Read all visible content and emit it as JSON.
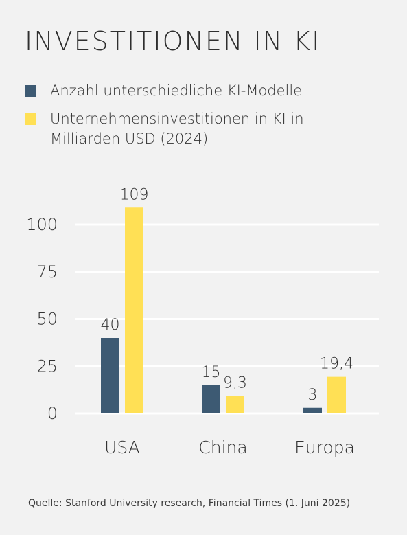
{
  "chart_data": {
    "type": "bar",
    "title": "INVESTITIONEN IN KI",
    "categories": [
      "USA",
      "China",
      "Europa"
    ],
    "series": [
      {
        "name": "Anzahl unterschiedliche KI-Modelle",
        "color": "#3d5a73",
        "values": [
          40,
          15,
          3
        ],
        "labels": [
          "40",
          "15",
          "3"
        ]
      },
      {
        "name": "Unternehmensinvestitionen in KI in Milliarden USD (2024)",
        "color": "#ffe055",
        "values": [
          109,
          9.3,
          19.4
        ],
        "labels": [
          "109",
          "9,3",
          "19,4"
        ]
      }
    ],
    "yticks": [
      0,
      25,
      50,
      75,
      100
    ],
    "ytick_labels": [
      "0",
      "25",
      "50",
      "75",
      "100"
    ],
    "ylim": [
      0,
      110
    ],
    "grid": true,
    "legend_position": "top-left"
  },
  "source": "Quelle: Stanford University research, Financial Times (1. Juni 2025)"
}
